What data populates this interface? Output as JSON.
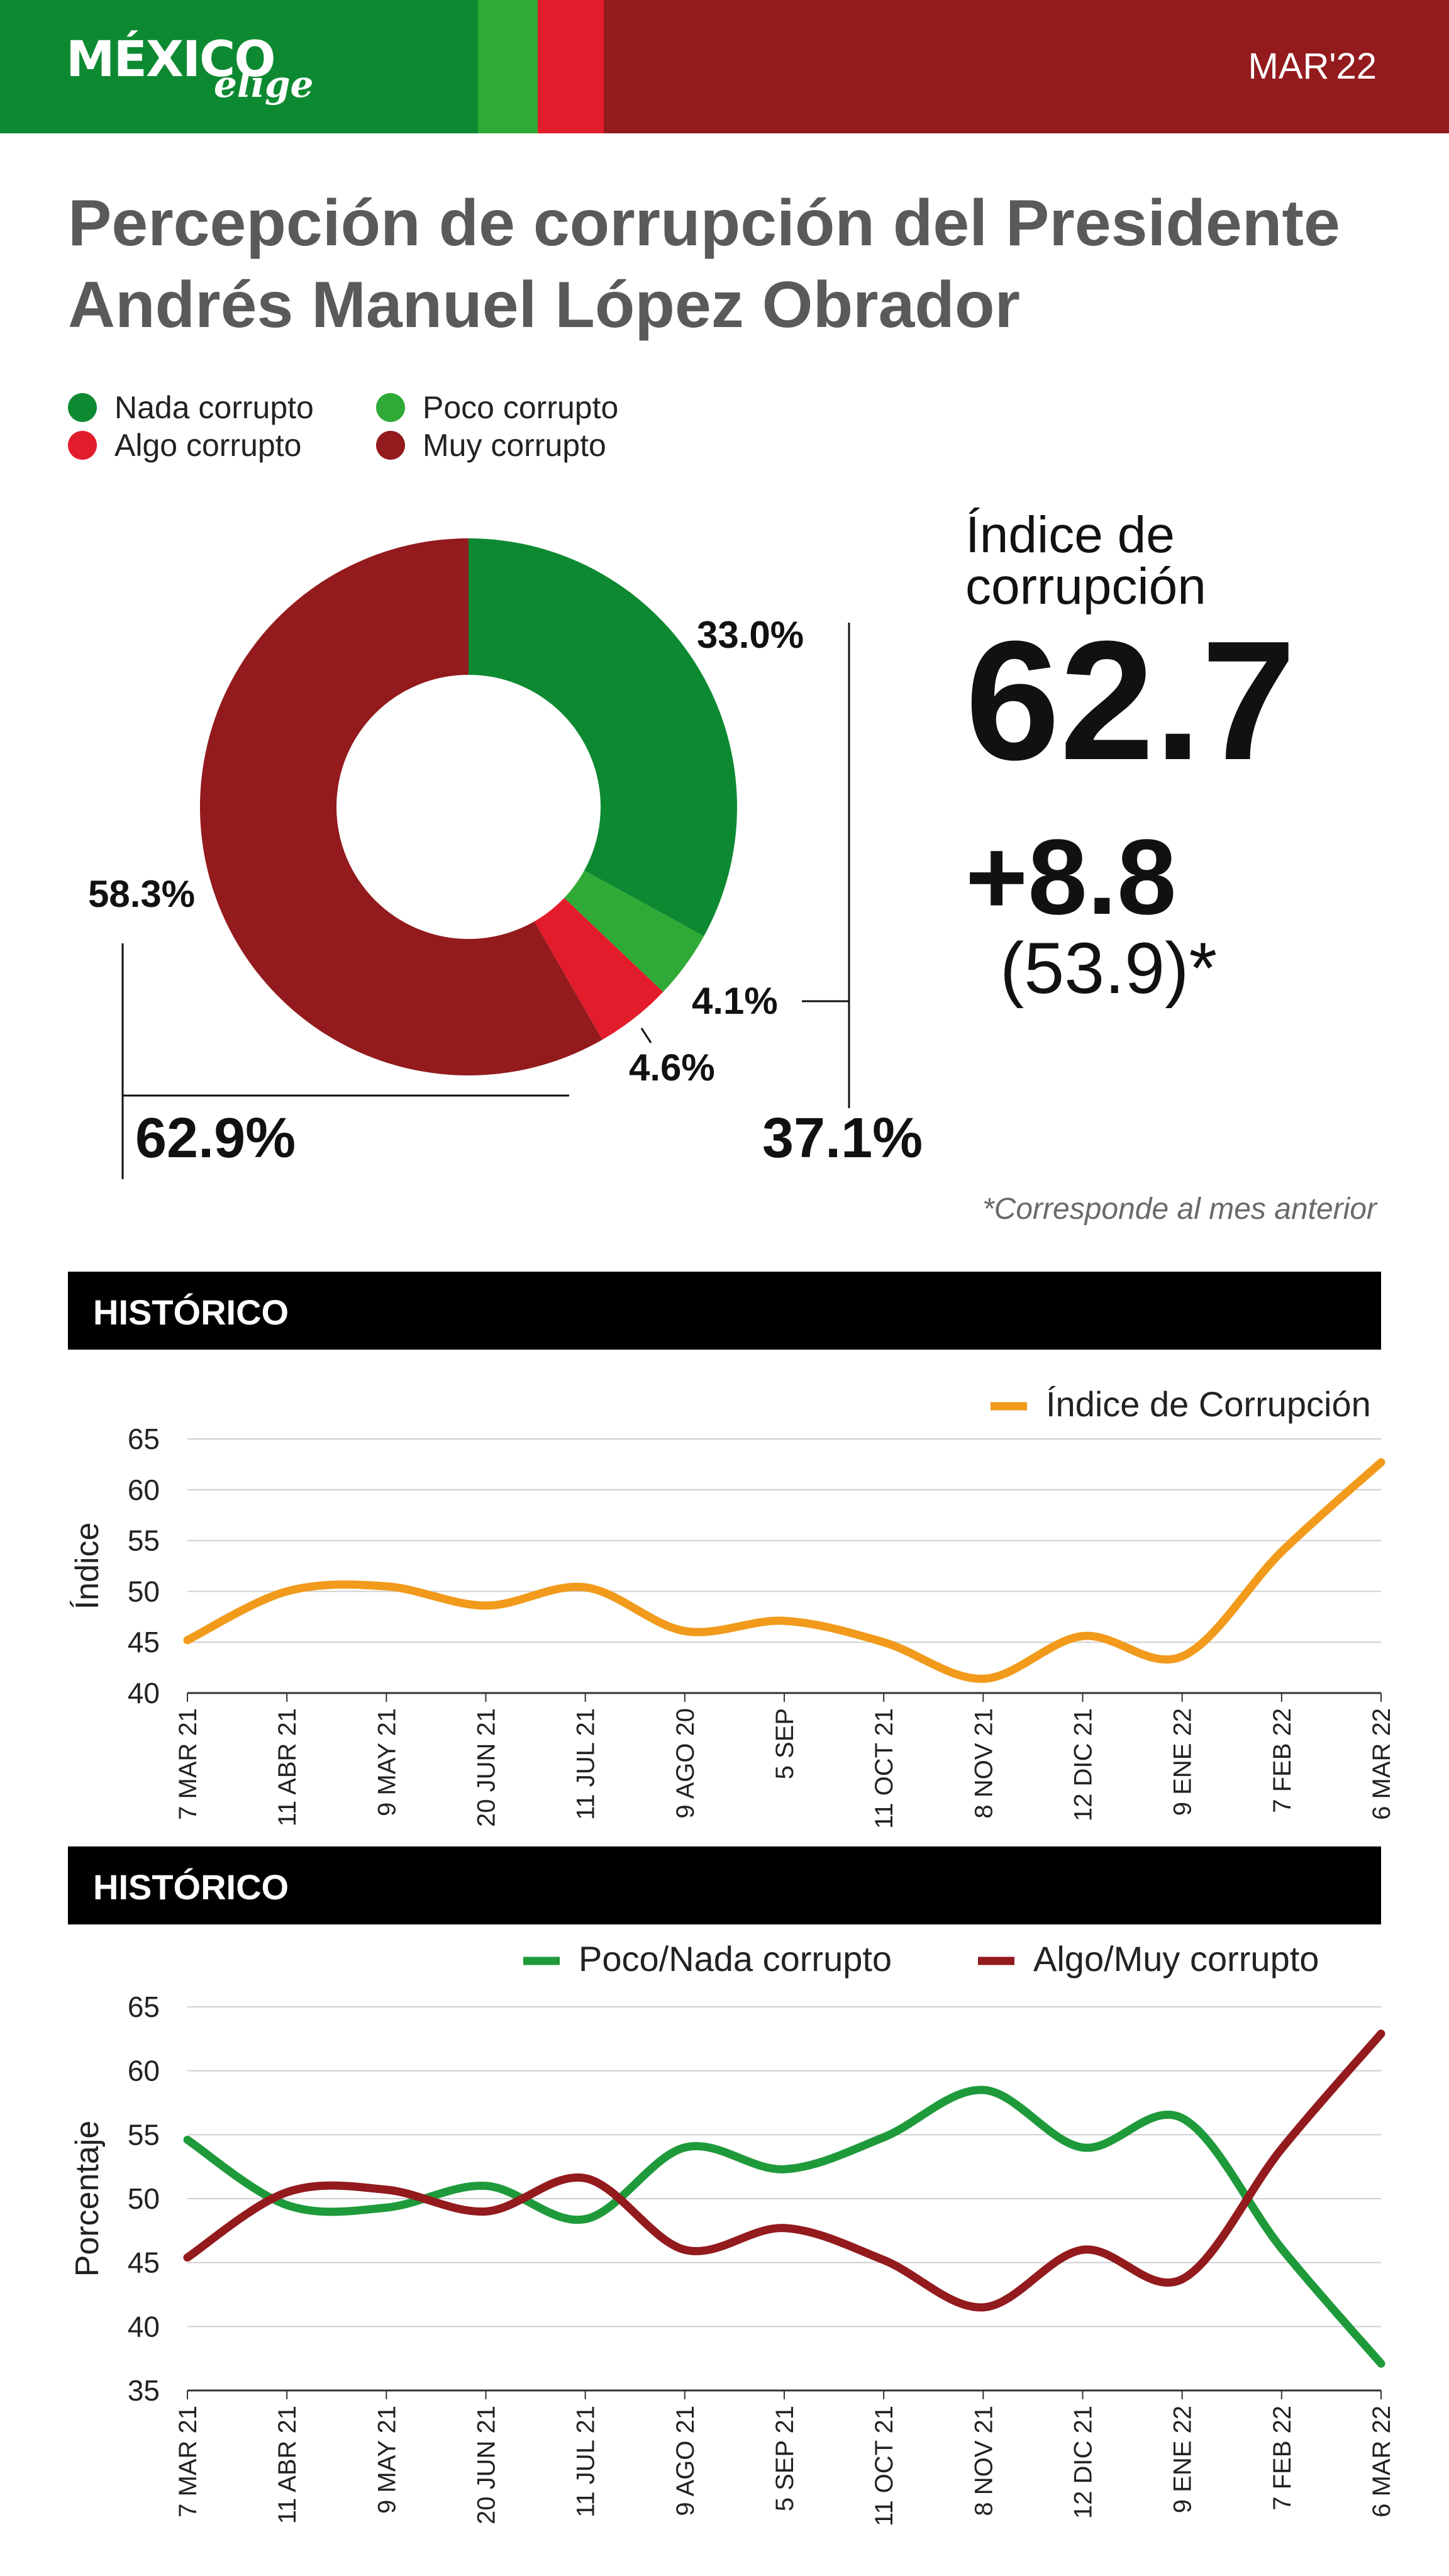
{
  "header": {
    "logo_main": "MÉXICO",
    "logo_sub": "elige",
    "date": "MAR'22",
    "colors": {
      "green": "#0d8a31",
      "light_green": "#2faa36",
      "red": "#e31c2c",
      "dark_red": "#931a1d"
    }
  },
  "title": "Percepción de corrupción del Presidente Andrés Manuel López Obrador",
  "legend": [
    {
      "label": "Nada corrupto",
      "color": "#0d8a31"
    },
    {
      "label": "Poco corrupto",
      "color": "#2faa36"
    },
    {
      "label": "Algo corrupto",
      "color": "#e31c2c"
    },
    {
      "label": "Muy corrupto",
      "color": "#931a1d"
    }
  ],
  "index": {
    "label": "Índice de corrupción",
    "value": "62.7",
    "change": "+8.8",
    "previous": "(53.9)*",
    "footnote": "*Corresponde al mes anterior"
  },
  "history_label": "HISTÓRICO",
  "chart_data": [
    {
      "type": "pie",
      "categories": [
        "Nada corrupto",
        "Poco corrupto",
        "Algo corrupto",
        "Muy corrupto"
      ],
      "values": [
        33.0,
        4.1,
        4.6,
        58.3
      ],
      "labels": [
        "33.0%",
        "4.1%",
        "4.6%",
        "58.3%"
      ],
      "colors": [
        "#0d8a31",
        "#2faa36",
        "#e31c2c",
        "#931a1d"
      ],
      "group_totals": [
        {
          "label": "37.1%",
          "members": [
            "Nada corrupto",
            "Poco corrupto"
          ]
        },
        {
          "label": "62.9%",
          "members": [
            "Algo corrupto",
            "Muy corrupto"
          ]
        }
      ]
    },
    {
      "type": "line",
      "title": "HISTÓRICO",
      "ylabel": "Índice",
      "x": [
        "7 MAR 21",
        "11 ABR 21",
        "9 MAY 21",
        "20 JUN 21",
        "11 JUL 21",
        "9 AGO 20",
        "5 SEP",
        "11 OCT 21",
        "8 NOV 21",
        "12 DIC 21",
        "9 ENE 22",
        "7 FEB 22",
        "6 MAR 22"
      ],
      "series": [
        {
          "name": "Índice de Corrupción",
          "color": "#f19a1b",
          "values": [
            45.2,
            50.0,
            50.5,
            48.6,
            50.4,
            46.1,
            47.1,
            45.0,
            41.4,
            45.6,
            43.6,
            53.9,
            62.7
          ]
        }
      ],
      "yticks": [
        40,
        45,
        50,
        55,
        60,
        65
      ],
      "ylim": [
        40,
        65
      ],
      "grid": true,
      "legend_position": "top-right"
    },
    {
      "type": "line",
      "title": "HISTÓRICO",
      "ylabel": "Porcentaje",
      "x": [
        "7 MAR 21",
        "11 ABR 21",
        "9 MAY 21",
        "20 JUN 21",
        "11 JUL 21",
        "9 AGO 21",
        "5 SEP 21",
        "11 OCT 21",
        "8 NOV 21",
        "12 DIC 21",
        "9 ENE 22",
        "7 FEB 22",
        "6 MAR 22"
      ],
      "series": [
        {
          "name": "Poco/Nada corrupto",
          "color": "#1e9a3a",
          "values": [
            54.6,
            49.5,
            49.3,
            51.0,
            48.4,
            54.0,
            52.3,
            54.8,
            58.5,
            54.0,
            56.3,
            46.1,
            37.1
          ]
        },
        {
          "name": "Algo/Muy corrupto",
          "color": "#931a1d",
          "values": [
            45.4,
            50.5,
            50.7,
            49.0,
            51.6,
            46.0,
            47.7,
            45.2,
            41.5,
            46.0,
            43.7,
            53.9,
            62.9
          ]
        }
      ],
      "yticks": [
        35,
        40,
        45,
        50,
        55,
        60,
        65
      ],
      "ylim": [
        35,
        65
      ],
      "grid": true,
      "legend_position": "top-right"
    }
  ]
}
